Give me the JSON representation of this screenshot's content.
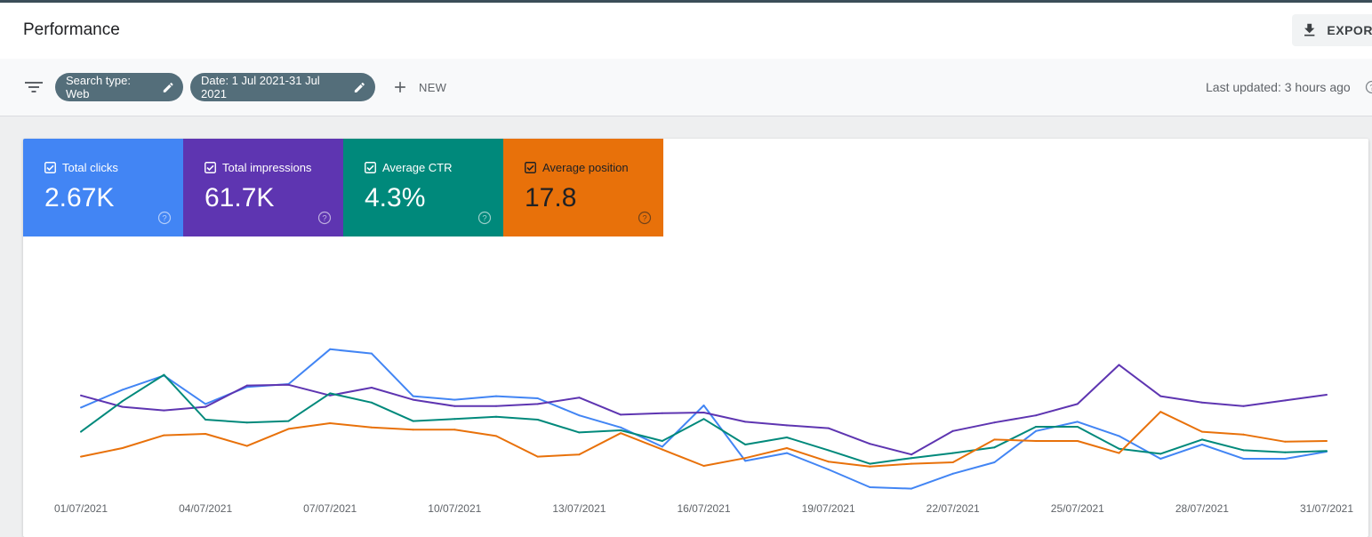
{
  "header": {
    "title": "Performance",
    "export_label": "EXPORT",
    "export_icon": "download-icon"
  },
  "filters": {
    "filter_icon": "filter-list-icon",
    "chips": [
      {
        "label": "Search type: Web",
        "icon": "edit-icon"
      },
      {
        "label": "Date: 1 Jul 2021-31 Jul 2021",
        "icon": "edit-icon"
      }
    ],
    "new_label": "NEW",
    "new_icon": "plus-icon",
    "last_updated": "Last updated: 3 hours ago",
    "help_icon": "help-icon"
  },
  "metrics": [
    {
      "label": "Total clicks",
      "value": "2.67K",
      "checked": true,
      "color": "#4285f4"
    },
    {
      "label": "Total impressions",
      "value": "61.7K",
      "checked": true,
      "color": "#5e35b1"
    },
    {
      "label": "Average CTR",
      "value": "4.3%",
      "checked": true,
      "color": "#00897b"
    },
    {
      "label": "Average position",
      "value": "17.8",
      "checked": true,
      "color": "#e8710a"
    }
  ],
  "chart_data": {
    "type": "line",
    "x": [
      "01/07/2021",
      "02/07/2021",
      "03/07/2021",
      "04/07/2021",
      "05/07/2021",
      "06/07/2021",
      "07/07/2021",
      "08/07/2021",
      "09/07/2021",
      "10/07/2021",
      "11/07/2021",
      "12/07/2021",
      "13/07/2021",
      "14/07/2021",
      "15/07/2021",
      "16/07/2021",
      "17/07/2021",
      "18/07/2021",
      "19/07/2021",
      "20/07/2021",
      "21/07/2021",
      "22/07/2021",
      "23/07/2021",
      "24/07/2021",
      "25/07/2021",
      "26/07/2021",
      "27/07/2021",
      "28/07/2021",
      "29/07/2021",
      "30/07/2021",
      "31/07/2021"
    ],
    "x_tick_labels": [
      "01/07/2021",
      "04/07/2021",
      "07/07/2021",
      "10/07/2021",
      "13/07/2021",
      "16/07/2021",
      "19/07/2021",
      "22/07/2021",
      "25/07/2021",
      "28/07/2021",
      "31/07/2021"
    ],
    "x_tick_indices": [
      0,
      3,
      6,
      9,
      12,
      15,
      18,
      21,
      24,
      27,
      30
    ],
    "axes_shown": false,
    "grid": false,
    "series": [
      {
        "name": "Total clicks",
        "color": "#4285f4",
        "values": [
          97,
          122,
          142,
          102,
          126,
          130,
          179,
          173,
          113,
          108,
          113,
          110,
          86,
          69,
          42,
          100,
          22,
          33,
          10,
          -15,
          -17,
          4,
          20,
          64,
          77,
          57,
          25,
          45,
          25,
          25,
          35
        ]
      },
      {
        "name": "Total impressions",
        "color": "#5e35b1",
        "values": [
          114,
          98,
          93,
          98,
          128,
          129,
          114,
          125,
          108,
          99,
          99,
          102,
          111,
          87,
          89,
          90,
          77,
          72,
          68,
          46,
          31,
          64,
          76,
          86,
          102,
          157,
          113,
          104,
          99,
          107,
          115
        ]
      },
      {
        "name": "Average CTR",
        "color": "#00897b",
        "values": [
          63,
          106,
          143,
          80,
          76,
          78,
          117,
          104,
          78,
          81,
          84,
          80,
          62,
          65,
          50,
          81,
          45,
          55,
          37,
          18,
          26,
          33,
          41,
          70,
          70,
          39,
          32,
          52,
          37,
          34,
          36
        ]
      },
      {
        "name": "Average position",
        "color": "#e8710a",
        "values": [
          28,
          40,
          58,
          60,
          43,
          67,
          75,
          69,
          66,
          66,
          57,
          28,
          31,
          61,
          38,
          15,
          26,
          40,
          21,
          14,
          18,
          20,
          52,
          50,
          50,
          33,
          91,
          63,
          59,
          49,
          50
        ]
      }
    ]
  }
}
